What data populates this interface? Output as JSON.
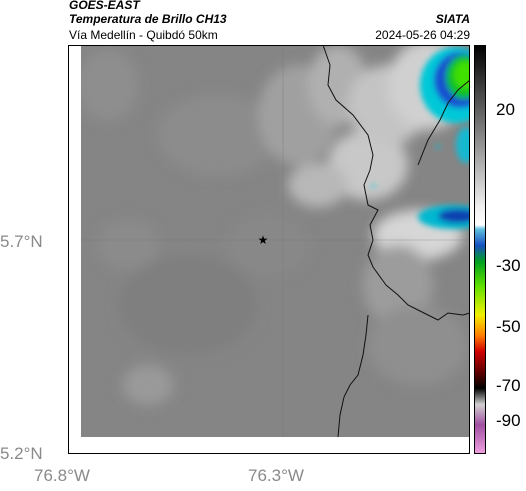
{
  "header": {
    "satellite": "GOES-EAST",
    "product": "Temperatura de Brillo CH13",
    "region": "Vía Medellín - Quibdó 50km",
    "org": "SIATA",
    "datetime": "2024-05-26 04:29"
  },
  "axes": {
    "lat_labels": [
      "5.7°N",
      "5.2°N"
    ],
    "lon_labels": [
      "76.8°W",
      "76.3°W"
    ],
    "tick_label_color": "#8a8a8a"
  },
  "colorbar": {
    "labels": [
      "20",
      "-30",
      "-50",
      "-70",
      "-90"
    ],
    "range": [
      -95,
      40
    ]
  },
  "marker": {
    "type": "star"
  }
}
